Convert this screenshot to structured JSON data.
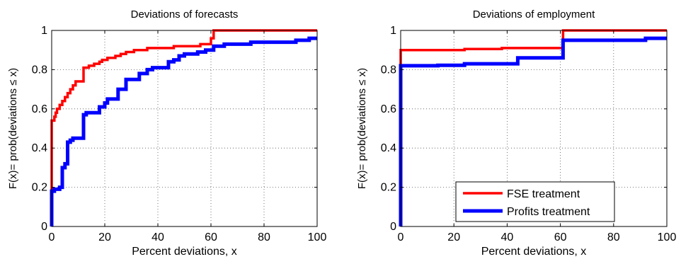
{
  "figure": {
    "charts": [
      {
        "title": "Deviations of forecasts"
      },
      {
        "title": "Deviations of employment"
      }
    ]
  },
  "chart_data": [
    {
      "type": "line",
      "step": true,
      "title": "Deviations of forecasts",
      "xlabel": "Percent deviations, x",
      "ylabel": "F(x)= prob(deviations ≤ x)",
      "xlim": [
        0,
        100
      ],
      "ylim": [
        0,
        1
      ],
      "xticks": [
        "0",
        "20",
        "40",
        "60",
        "80",
        "100"
      ],
      "yticks": [
        "0",
        "0.2",
        "0.4",
        "0.6",
        "0.8",
        "1"
      ],
      "grid": true,
      "series": [
        {
          "color": "#ff0000",
          "points": [
            [
              0,
              0
            ],
            [
              0,
              0.54
            ],
            [
              1,
              0.54
            ],
            [
              1,
              0.56
            ],
            [
              1.5,
              0.56
            ],
            [
              1.5,
              0.58
            ],
            [
              2,
              0.58
            ],
            [
              2,
              0.6
            ],
            [
              3,
              0.6
            ],
            [
              3,
              0.62
            ],
            [
              4,
              0.62
            ],
            [
              4,
              0.64
            ],
            [
              5,
              0.64
            ],
            [
              5,
              0.66
            ],
            [
              6,
              0.66
            ],
            [
              6,
              0.68
            ],
            [
              7,
              0.68
            ],
            [
              7,
              0.7
            ],
            [
              8,
              0.7
            ],
            [
              8,
              0.72
            ],
            [
              9,
              0.72
            ],
            [
              9,
              0.74
            ],
            [
              12,
              0.74
            ],
            [
              12,
              0.81
            ],
            [
              14,
              0.81
            ],
            [
              14,
              0.82
            ],
            [
              16,
              0.82
            ],
            [
              16,
              0.83
            ],
            [
              18,
              0.83
            ],
            [
              18,
              0.84
            ],
            [
              19,
              0.84
            ],
            [
              19,
              0.85
            ],
            [
              21,
              0.85
            ],
            [
              21,
              0.86
            ],
            [
              24,
              0.86
            ],
            [
              24,
              0.87
            ],
            [
              26,
              0.87
            ],
            [
              26,
              0.88
            ],
            [
              28,
              0.88
            ],
            [
              28,
              0.89
            ],
            [
              31,
              0.89
            ],
            [
              31,
              0.9
            ],
            [
              36,
              0.9
            ],
            [
              36,
              0.91
            ],
            [
              46,
              0.91
            ],
            [
              46,
              0.92
            ],
            [
              56,
              0.92
            ],
            [
              56,
              0.93
            ],
            [
              60,
              0.93
            ],
            [
              60,
              0.96
            ],
            [
              61,
              0.96
            ],
            [
              61,
              1.0
            ],
            [
              100,
              1.0
            ]
          ]
        },
        {
          "color": "#0000ff",
          "points": [
            [
              0,
              0
            ],
            [
              0,
              0.18
            ],
            [
              1,
              0.18
            ],
            [
              1,
              0.19
            ],
            [
              3,
              0.19
            ],
            [
              3,
              0.2
            ],
            [
              4,
              0.2
            ],
            [
              4,
              0.3
            ],
            [
              5,
              0.3
            ],
            [
              5,
              0.32
            ],
            [
              6,
              0.32
            ],
            [
              6,
              0.43
            ],
            [
              7,
              0.43
            ],
            [
              7,
              0.44
            ],
            [
              8,
              0.44
            ],
            [
              8,
              0.45
            ],
            [
              12,
              0.45
            ],
            [
              12,
              0.57
            ],
            [
              13,
              0.57
            ],
            [
              13,
              0.58
            ],
            [
              18,
              0.58
            ],
            [
              18,
              0.61
            ],
            [
              20,
              0.61
            ],
            [
              20,
              0.63
            ],
            [
              21,
              0.63
            ],
            [
              21,
              0.65
            ],
            [
              25,
              0.65
            ],
            [
              25,
              0.7
            ],
            [
              28,
              0.7
            ],
            [
              28,
              0.75
            ],
            [
              33,
              0.75
            ],
            [
              33,
              0.78
            ],
            [
              36,
              0.78
            ],
            [
              36,
              0.8
            ],
            [
              38,
              0.8
            ],
            [
              38,
              0.81
            ],
            [
              44,
              0.81
            ],
            [
              44,
              0.84
            ],
            [
              46,
              0.84
            ],
            [
              46,
              0.85
            ],
            [
              48,
              0.85
            ],
            [
              48,
              0.87
            ],
            [
              50,
              0.87
            ],
            [
              50,
              0.88
            ],
            [
              55,
              0.88
            ],
            [
              55,
              0.89
            ],
            [
              58,
              0.89
            ],
            [
              58,
              0.9
            ],
            [
              61,
              0.9
            ],
            [
              61,
              0.92
            ],
            [
              65,
              0.92
            ],
            [
              65,
              0.93
            ],
            [
              75,
              0.93
            ],
            [
              75,
              0.94
            ],
            [
              92,
              0.94
            ],
            [
              92,
              0.95
            ],
            [
              97,
              0.95
            ],
            [
              97,
              0.96
            ],
            [
              100,
              0.96
            ]
          ]
        }
      ]
    },
    {
      "type": "line",
      "step": true,
      "title": "Deviations of employment",
      "xlabel": "Percent deviations, x",
      "ylabel": "F(x)= prob(deviations ≤ x)",
      "xlim": [
        0,
        100
      ],
      "ylim": [
        0,
        1
      ],
      "xticks": [
        "0",
        "20",
        "40",
        "60",
        "80",
        "100"
      ],
      "yticks": [
        "0",
        "0.2",
        "0.4",
        "0.6",
        "0.8",
        "1"
      ],
      "grid": true,
      "legend": {
        "placement": "bottom-right"
      },
      "series": [
        {
          "name": "FSE treatment",
          "color": "#ff0000",
          "points": [
            [
              0,
              0
            ],
            [
              0,
              0.9
            ],
            [
              24,
              0.9
            ],
            [
              24,
              0.905
            ],
            [
              38,
              0.905
            ],
            [
              38,
              0.91
            ],
            [
              61,
              0.91
            ],
            [
              61,
              1.0
            ],
            [
              100,
              1.0
            ]
          ]
        },
        {
          "name": "Profits treatment",
          "color": "#0000ff",
          "points": [
            [
              0,
              0
            ],
            [
              0,
              0.82
            ],
            [
              14,
              0.82
            ],
            [
              14,
              0.822
            ],
            [
              24,
              0.822
            ],
            [
              24,
              0.83
            ],
            [
              44,
              0.83
            ],
            [
              44,
              0.86
            ],
            [
              61,
              0.86
            ],
            [
              61,
              0.95
            ],
            [
              92,
              0.95
            ],
            [
              92,
              0.96
            ],
            [
              100,
              0.96
            ]
          ]
        }
      ]
    }
  ]
}
